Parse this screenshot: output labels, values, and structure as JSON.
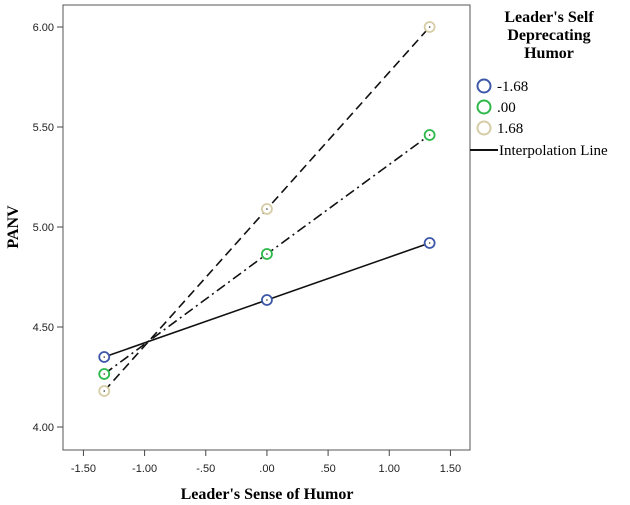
{
  "chart_data": {
    "type": "line",
    "title": "",
    "xlabel": "Leader's Sense of Humor",
    "ylabel": "PANV",
    "xlim": [
      -1.667,
      1.66
    ],
    "ylim": [
      3.885,
      6.11
    ],
    "xticks": [
      -1.5,
      -1.0,
      -0.5,
      0.0,
      0.5,
      1.0,
      1.5
    ],
    "xtick_labels": [
      "-1.50",
      "-1.00",
      "-.50",
      ".00",
      ".50",
      "1.00",
      "1.50"
    ],
    "yticks": [
      4.0,
      4.5,
      5.0,
      5.5,
      6.0
    ],
    "ytick_labels": [
      "4.00",
      "4.50",
      "5.00",
      "5.50",
      "6.00"
    ],
    "grid": false,
    "legend": {
      "title": "Leader's Self Deprecating Humor",
      "title_lines": [
        "Leader's Self",
        "Deprecating",
        "Humor"
      ],
      "placement": "right",
      "interpolation_label": "Interpolation Line"
    },
    "x": [
      -1.33,
      0.0,
      1.33
    ],
    "series": [
      {
        "name": "-1.68",
        "values": [
          4.35,
          4.635,
          4.92
        ],
        "color": "#3d58a8",
        "dash": "solid"
      },
      {
        "name": ".00",
        "values": [
          4.265,
          4.865,
          5.46
        ],
        "color": "#2db84a",
        "dash": "dashdot"
      },
      {
        "name": "1.68",
        "values": [
          4.18,
          5.09,
          6.0
        ],
        "color": "#d6cca6",
        "dash": "dashed"
      }
    ]
  }
}
